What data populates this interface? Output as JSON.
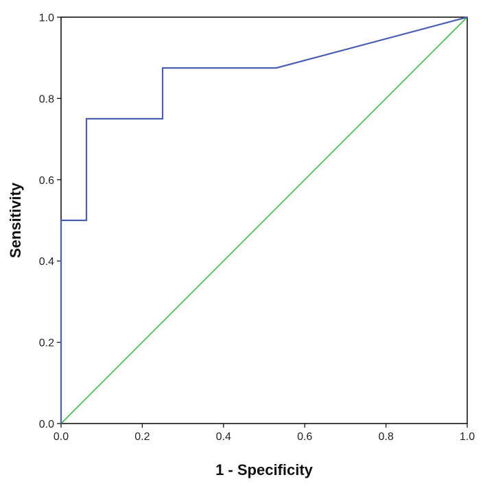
{
  "chart_data": {
    "type": "line",
    "title": "",
    "xlabel": "1 - Specificity",
    "ylabel": "Sensitivity",
    "xlim": [
      0,
      1
    ],
    "ylim": [
      0,
      1
    ],
    "x_ticks": [
      "0.0",
      "0.2",
      "0.4",
      "0.6",
      "0.8",
      "1.0"
    ],
    "y_ticks": [
      "0.0",
      "0.2",
      "0.4",
      "0.6",
      "0.8",
      "1.0"
    ],
    "grid": false,
    "legend": "none",
    "series": [
      {
        "color": "#4a5fb0",
        "points": [
          [
            0.0,
            0.0
          ],
          [
            0.0,
            0.5
          ],
          [
            0.0625,
            0.5
          ],
          [
            0.0625,
            0.75
          ],
          [
            0.25,
            0.75
          ],
          [
            0.25,
            0.875
          ],
          [
            0.53,
            0.875
          ],
          [
            1.0,
            1.0
          ]
        ]
      },
      {
        "color": "#3cb84a",
        "points": [
          [
            0.0,
            0.0
          ],
          [
            1.0,
            1.0
          ]
        ]
      }
    ]
  }
}
